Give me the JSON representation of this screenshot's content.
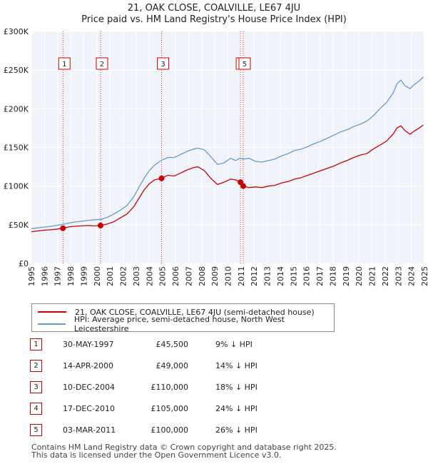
{
  "title_line1": "21, OAK CLOSE, COALVILLE, LE67 4JU",
  "title_line2": "Price paid vs. HM Land Registry's House Price Index (HPI)",
  "colors": {
    "property": "#cc0000",
    "hpi": "#6699cc",
    "marker_line": "#cc0000"
  },
  "legend": {
    "property_label": "21, OAK CLOSE, COALVILLE, LE67 4JU (semi-detached house)",
    "hpi_label": "HPI: Average price, semi-detached house, North West Leicestershire"
  },
  "transactions": [
    {
      "num": "1",
      "date": "30-MAY-1997",
      "price": "£45,500",
      "hpi_diff": "9% ↓ HPI"
    },
    {
      "num": "2",
      "date": "14-APR-2000",
      "price": "£49,000",
      "hpi_diff": "14% ↓ HPI"
    },
    {
      "num": "3",
      "date": "10-DEC-2004",
      "price": "£110,000",
      "hpi_diff": "18% ↓ HPI"
    },
    {
      "num": "4",
      "date": "17-DEC-2010",
      "price": "£105,000",
      "hpi_diff": "24% ↓ HPI"
    },
    {
      "num": "5",
      "date": "03-MAR-2011",
      "price": "£100,000",
      "hpi_diff": "26% ↓ HPI"
    }
  ],
  "footer_line1": "Contains HM Land Registry data © Crown copyright and database right 2025.",
  "footer_line2": "This data is licensed under the Open Government Licence v3.0.",
  "chart_data": {
    "type": "line",
    "title": "21, OAK CLOSE, COALVILLE, LE67 4JU",
    "subtitle": "Price paid vs. HM Land Registry's House Price Index (HPI)",
    "xlabel": "",
    "ylabel": "",
    "xlim": [
      1995,
      2025
    ],
    "ylim": [
      0,
      300000
    ],
    "y_ticks": [
      0,
      50000,
      100000,
      150000,
      200000,
      250000,
      300000
    ],
    "y_tick_labels": [
      "£0",
      "£50K",
      "£100K",
      "£150K",
      "£200K",
      "£250K",
      "£300K"
    ],
    "x_ticks": [
      1995,
      1996,
      1997,
      1998,
      1999,
      2000,
      2001,
      2002,
      2003,
      2004,
      2005,
      2006,
      2007,
      2008,
      2009,
      2010,
      2011,
      2012,
      2013,
      2014,
      2015,
      2016,
      2017,
      2018,
      2019,
      2020,
      2021,
      2022,
      2023,
      2024,
      2025
    ],
    "grid": true,
    "series": [
      {
        "name": "HPI: Average price, semi-detached house, North West Leicestershire",
        "x": [
          1995.0,
          1995.5,
          1996.0,
          1996.5,
          1997.0,
          1997.4,
          1997.8,
          1998.3,
          1998.8,
          1999.3,
          1999.8,
          2000.3,
          2000.8,
          2001.3,
          2001.8,
          2002.3,
          2002.8,
          2003.2,
          2003.6,
          2004.0,
          2004.4,
          2004.9,
          2005.4,
          2005.9,
          2006.4,
          2006.9,
          2007.4,
          2007.7,
          2008.2,
          2008.7,
          2009.2,
          2009.7,
          2010.2,
          2010.6,
          2010.9,
          2011.2,
          2011.6,
          2012.1,
          2012.6,
          2013.1,
          2013.6,
          2014.1,
          2014.6,
          2015.1,
          2015.6,
          2016.1,
          2016.6,
          2017.1,
          2017.6,
          2018.1,
          2018.6,
          2019.1,
          2019.6,
          2020.1,
          2020.6,
          2021.1,
          2021.6,
          2022.1,
          2022.6,
          2022.9,
          2023.2,
          2023.5,
          2023.9,
          2024.2,
          2024.6,
          2024.9
        ],
        "y": [
          45000,
          46000,
          47000,
          48000,
          49500,
          50500,
          52000,
          53500,
          54500,
          55500,
          56500,
          57000,
          59500,
          64000,
          69000,
          75000,
          86000,
          98000,
          110000,
          120000,
          127000,
          133000,
          137000,
          137000,
          141000,
          145000,
          148000,
          149000,
          147000,
          138000,
          128000,
          130000,
          136000,
          133000,
          136000,
          135000,
          136000,
          132000,
          131000,
          133000,
          135000,
          139000,
          142000,
          146000,
          148000,
          151000,
          155000,
          158000,
          162000,
          166000,
          170000,
          173000,
          177000,
          180000,
          184000,
          191000,
          200000,
          208000,
          220000,
          232000,
          237000,
          230000,
          226000,
          231000,
          236000,
          241000
        ]
      },
      {
        "name": "21, OAK CLOSE, COALVILLE, LE67 4JU (semi-detached house)",
        "x": [
          1995.0,
          1995.5,
          1996.0,
          1996.5,
          1997.0,
          1997.41,
          1997.8,
          1998.3,
          1998.8,
          1999.3,
          1999.8,
          2000.28,
          2000.8,
          2001.3,
          2001.8,
          2002.3,
          2002.8,
          2003.2,
          2003.6,
          2004.0,
          2004.4,
          2004.94,
          2005.4,
          2005.9,
          2006.4,
          2006.9,
          2007.4,
          2007.7,
          2008.2,
          2008.7,
          2009.2,
          2009.7,
          2010.2,
          2010.6,
          2010.96,
          2011.17,
          2011.6,
          2012.1,
          2012.6,
          2013.1,
          2013.6,
          2014.1,
          2014.6,
          2015.1,
          2015.6,
          2016.1,
          2016.6,
          2017.1,
          2017.6,
          2018.1,
          2018.6,
          2019.1,
          2019.6,
          2020.1,
          2020.6,
          2021.1,
          2021.6,
          2022.1,
          2022.6,
          2022.9,
          2023.2,
          2023.5,
          2023.9,
          2024.2,
          2024.6,
          2024.9
        ],
        "y": [
          41000,
          42000,
          43000,
          43500,
          44500,
          45500,
          47000,
          48000,
          48500,
          49000,
          48500,
          49000,
          51000,
          54000,
          59000,
          64000,
          73000,
          84000,
          95000,
          103000,
          108000,
          110000,
          114000,
          113000,
          117000,
          121000,
          124000,
          125000,
          120000,
          110000,
          102000,
          105000,
          109000,
          108000,
          105000,
          100000,
          98000,
          99000,
          98000,
          100000,
          101000,
          104000,
          106000,
          109000,
          111000,
          114000,
          117000,
          120000,
          123000,
          126000,
          130000,
          133000,
          137000,
          140000,
          142000,
          148000,
          153000,
          158000,
          167000,
          175000,
          178000,
          172000,
          167000,
          171000,
          175000,
          179000
        ]
      }
    ],
    "markers": [
      {
        "label": "1",
        "x": 1997.41,
        "y": 45500
      },
      {
        "label": "2",
        "x": 2000.28,
        "y": 49000
      },
      {
        "label": "3",
        "x": 2004.94,
        "y": 110000
      },
      {
        "label": "4",
        "x": 2010.96,
        "y": 105000
      },
      {
        "label": "5",
        "x": 2011.17,
        "y": 100000
      }
    ]
  }
}
